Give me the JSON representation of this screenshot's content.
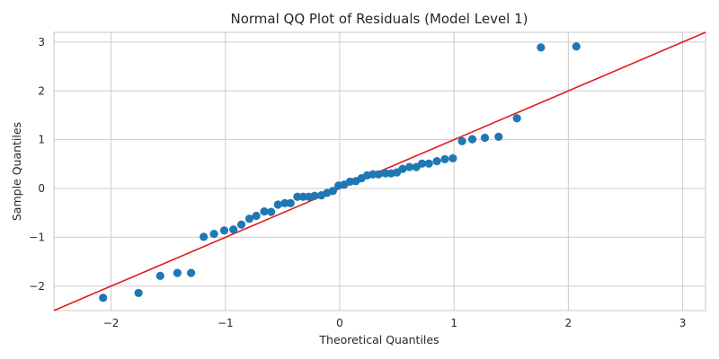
{
  "chart_data": {
    "type": "scatter",
    "title": "Normal QQ Plot of Residuals (Model Level 1)",
    "xlabel": "Theoretical Quantiles",
    "ylabel": "Sample Quantiles",
    "xlim": [
      -2.5,
      3.2
    ],
    "ylim": [
      -2.5,
      3.2
    ],
    "xticks": [
      -2,
      -1,
      0,
      1,
      2,
      3
    ],
    "yticks": [
      -2,
      -1,
      0,
      1,
      2,
      3
    ],
    "xtick_labels": [
      "−2",
      "−1",
      "0",
      "1",
      "2",
      "3"
    ],
    "ytick_labels": [
      "−2",
      "−1",
      "0",
      "1",
      "2",
      "3"
    ],
    "grid": true,
    "point_color": "#1f77b4",
    "line_color": "#e41a1c",
    "reference_line": {
      "slope": 1.0,
      "intercept": 0.0
    },
    "points": [
      {
        "x": -2.07,
        "y": -2.24
      },
      {
        "x": -1.76,
        "y": -2.14
      },
      {
        "x": -1.57,
        "y": -1.79
      },
      {
        "x": -1.42,
        "y": -1.73
      },
      {
        "x": -1.3,
        "y": -1.73
      },
      {
        "x": -1.19,
        "y": -0.99
      },
      {
        "x": -1.1,
        "y": -0.93
      },
      {
        "x": -1.01,
        "y": -0.86
      },
      {
        "x": -0.93,
        "y": -0.84
      },
      {
        "x": -0.86,
        "y": -0.74
      },
      {
        "x": -0.79,
        "y": -0.62
      },
      {
        "x": -0.73,
        "y": -0.56
      },
      {
        "x": -0.66,
        "y": -0.47
      },
      {
        "x": -0.6,
        "y": -0.48
      },
      {
        "x": -0.54,
        "y": -0.33
      },
      {
        "x": -0.48,
        "y": -0.3
      },
      {
        "x": -0.43,
        "y": -0.3
      },
      {
        "x": -0.37,
        "y": -0.17
      },
      {
        "x": -0.32,
        "y": -0.17
      },
      {
        "x": -0.27,
        "y": -0.17
      },
      {
        "x": -0.22,
        "y": -0.15
      },
      {
        "x": -0.16,
        "y": -0.14
      },
      {
        "x": -0.11,
        "y": -0.09
      },
      {
        "x": -0.06,
        "y": -0.05
      },
      {
        "x": -0.01,
        "y": 0.06
      },
      {
        "x": 0.04,
        "y": 0.08
      },
      {
        "x": 0.09,
        "y": 0.14
      },
      {
        "x": 0.14,
        "y": 0.15
      },
      {
        "x": 0.19,
        "y": 0.21
      },
      {
        "x": 0.24,
        "y": 0.27
      },
      {
        "x": 0.29,
        "y": 0.29
      },
      {
        "x": 0.34,
        "y": 0.29
      },
      {
        "x": 0.4,
        "y": 0.31
      },
      {
        "x": 0.45,
        "y": 0.31
      },
      {
        "x": 0.5,
        "y": 0.33
      },
      {
        "x": 0.55,
        "y": 0.4
      },
      {
        "x": 0.61,
        "y": 0.44
      },
      {
        "x": 0.67,
        "y": 0.44
      },
      {
        "x": 0.72,
        "y": 0.51
      },
      {
        "x": 0.78,
        "y": 0.51
      },
      {
        "x": 0.85,
        "y": 0.56
      },
      {
        "x": 0.92,
        "y": 0.6
      },
      {
        "x": 0.99,
        "y": 0.62
      },
      {
        "x": 1.07,
        "y": 0.97
      },
      {
        "x": 1.16,
        "y": 1.01
      },
      {
        "x": 1.27,
        "y": 1.04
      },
      {
        "x": 1.39,
        "y": 1.06
      },
      {
        "x": 1.55,
        "y": 1.44
      },
      {
        "x": 1.76,
        "y": 2.89
      },
      {
        "x": 2.07,
        "y": 2.91
      }
    ]
  }
}
